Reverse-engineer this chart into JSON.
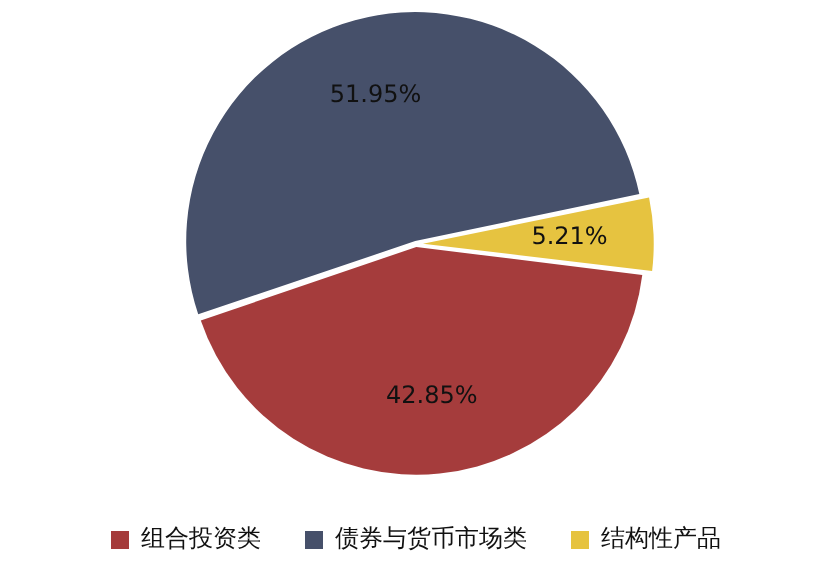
{
  "chart_data": {
    "type": "pie",
    "categories": [
      "组合投资类",
      "债券与货币市场类",
      "结构性产品"
    ],
    "values": [
      42.85,
      51.95,
      5.21
    ],
    "colors": [
      "#a53c3c",
      "#46506a",
      "#e6c340"
    ],
    "value_labels": [
      "42.85%",
      "51.95%",
      "5.21%"
    ],
    "legend": "bottom"
  }
}
